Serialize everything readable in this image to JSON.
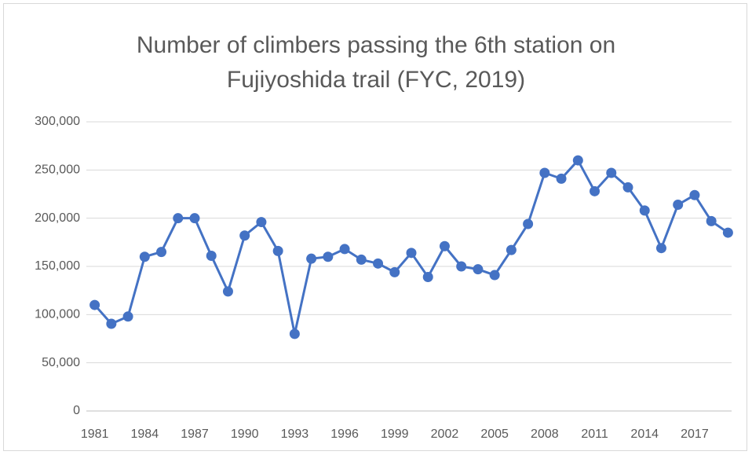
{
  "chart_data": {
    "type": "line",
    "title": "Number of climbers passing the 6th station on Fujiyoshida trail (FYC, 2019)",
    "categories": [
      "1981",
      null,
      null,
      "1984",
      null,
      null,
      "1987",
      null,
      null,
      "1990",
      null,
      null,
      "1993",
      null,
      null,
      "1996",
      null,
      null,
      "1999",
      null,
      null,
      "2002",
      null,
      null,
      "2005",
      null,
      null,
      "2008",
      null,
      null,
      "2011",
      null,
      null,
      "2014",
      null,
      null,
      "2017",
      null,
      null
    ],
    "values": [
      110000,
      90500,
      98000,
      160000,
      165000,
      200000,
      200000,
      161000,
      124000,
      182000,
      196000,
      166000,
      80000,
      158000,
      160000,
      168000,
      157000,
      153000,
      144000,
      164000,
      139000,
      171000,
      150000,
      147000,
      141000,
      167000,
      194000,
      247000,
      241000,
      260000,
      228000,
      247000,
      232000,
      208000,
      169000,
      214000,
      224000,
      197000,
      185000
    ],
    "color": "#4472c4",
    "ylim": [
      0,
      300000
    ],
    "yticks": [
      0,
      {
        "value": 50000,
        "label": "50,000"
      },
      {
        "value": 100000,
        "label": "100,000"
      },
      {
        "value": 150000,
        "label": "150,000"
      },
      {
        "value": 200000,
        "label": "200,000"
      },
      {
        "value": 250000,
        "label": "250,000"
      },
      {
        "value": 300000,
        "label": "300,000"
      }
    ],
    "grid": true
  }
}
